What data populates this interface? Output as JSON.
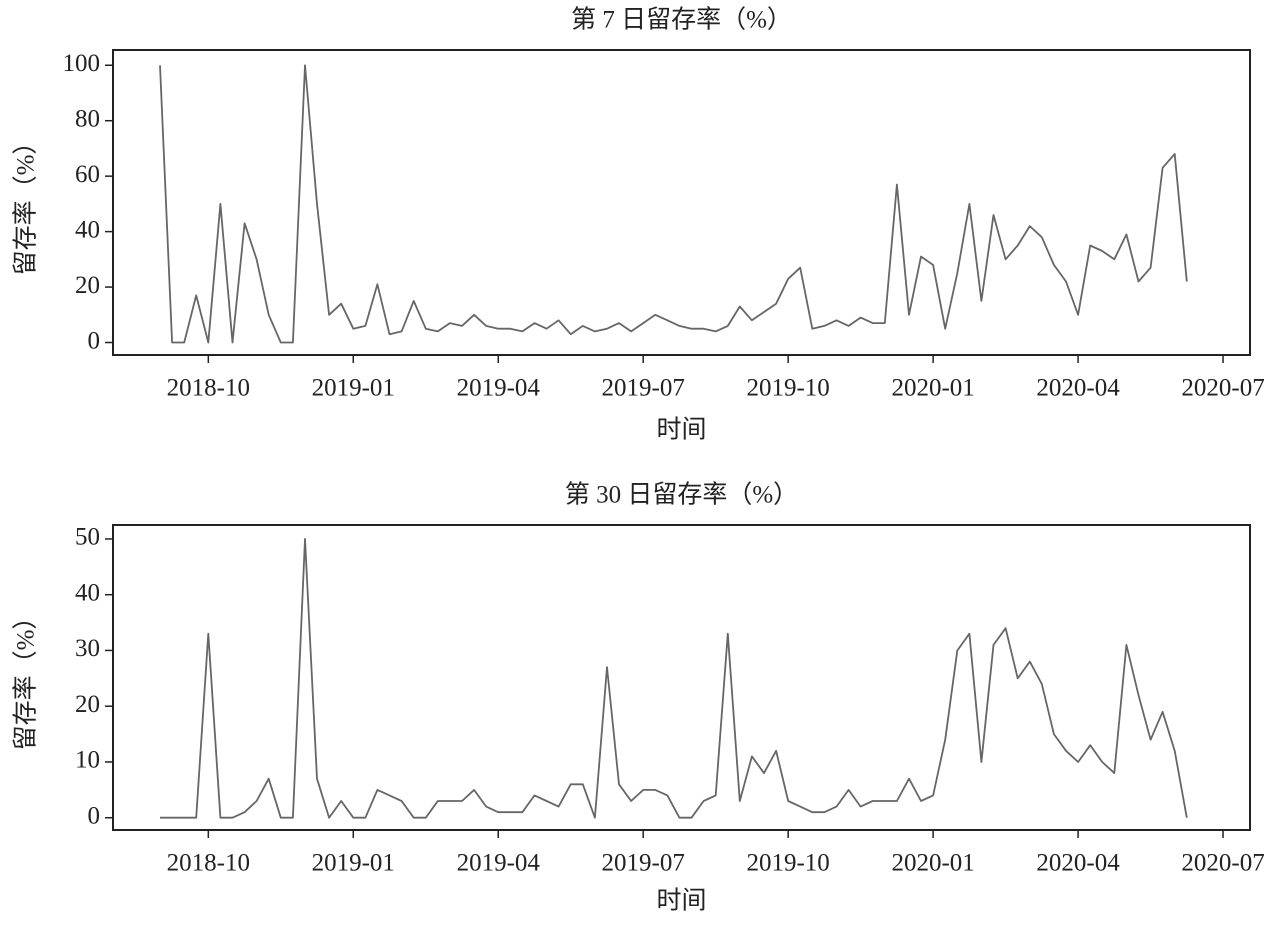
{
  "chart_data": [
    {
      "type": "line",
      "title": "第 7 日留存率（%）",
      "ylabel": "留存率（%）",
      "xlabel": "时间",
      "color": "#666666",
      "categories": [
        null,
        null,
        null,
        null,
        "2018-10",
        null,
        null,
        null,
        null,
        null,
        null,
        null,
        null,
        null,
        null,
        null,
        "2019-01",
        null,
        null,
        null,
        null,
        null,
        null,
        null,
        null,
        null,
        null,
        null,
        "2019-04",
        null,
        null,
        null,
        null,
        null,
        null,
        null,
        null,
        null,
        null,
        null,
        "2019-07",
        null,
        null,
        null,
        null,
        null,
        null,
        null,
        null,
        null,
        null,
        null,
        "2019-10",
        null,
        null,
        null,
        null,
        null,
        null,
        null,
        null,
        null,
        null,
        null,
        "2020-01",
        null,
        null,
        null,
        null,
        null,
        null,
        null,
        null,
        null,
        null,
        null,
        "2020-04",
        null,
        null,
        null,
        null,
        null,
        null,
        null,
        null,
        null,
        null,
        null,
        "2020-07"
      ],
      "values": [
        100,
        0,
        0,
        17,
        0,
        50,
        0,
        43,
        30,
        10,
        0,
        0,
        100,
        50,
        10,
        14,
        5,
        6,
        21,
        3,
        4,
        15,
        5,
        4,
        7,
        6,
        10,
        6,
        5,
        5,
        4,
        7,
        5,
        8,
        3,
        6,
        4,
        5,
        7,
        4,
        7,
        10,
        8,
        6,
        5,
        5,
        4,
        6,
        13,
        8,
        11,
        14,
        23,
        27,
        5,
        6,
        8,
        6,
        9,
        7,
        7,
        57,
        10,
        31,
        28,
        5,
        25,
        50,
        15,
        46,
        30,
        35,
        42,
        38,
        28,
        22,
        10,
        35,
        33,
        30,
        39,
        22,
        27,
        63,
        68,
        22,
        null,
        null,
        null
      ],
      "ylim": [
        -4.5,
        105.5
      ],
      "yticks": [
        0,
        20,
        40,
        60,
        80,
        100
      ]
    },
    {
      "type": "line",
      "title": "第 30 日留存率（%）",
      "ylabel": "留存率（%）",
      "xlabel": "时间",
      "color": "#666666",
      "categories": [
        null,
        null,
        null,
        null,
        "2018-10",
        null,
        null,
        null,
        null,
        null,
        null,
        null,
        null,
        null,
        null,
        null,
        "2019-01",
        null,
        null,
        null,
        null,
        null,
        null,
        null,
        null,
        null,
        null,
        null,
        "2019-04",
        null,
        null,
        null,
        null,
        null,
        null,
        null,
        null,
        null,
        null,
        null,
        "2019-07",
        null,
        null,
        null,
        null,
        null,
        null,
        null,
        null,
        null,
        null,
        null,
        "2019-10",
        null,
        null,
        null,
        null,
        null,
        null,
        null,
        null,
        null,
        null,
        null,
        "2020-01",
        null,
        null,
        null,
        null,
        null,
        null,
        null,
        null,
        null,
        null,
        null,
        "2020-04",
        null,
        null,
        null,
        null,
        null,
        null,
        null,
        null,
        null,
        null,
        null,
        "2020-07"
      ],
      "values": [
        0,
        0,
        0,
        0,
        33,
        0,
        0,
        1,
        3,
        7,
        0,
        0,
        50,
        7,
        0,
        3,
        0,
        0,
        5,
        4,
        3,
        0,
        0,
        3,
        3,
        3,
        5,
        2,
        1,
        1,
        1,
        4,
        3,
        2,
        6,
        6,
        0,
        27,
        6,
        3,
        5,
        5,
        4,
        0,
        0,
        3,
        4,
        33,
        3,
        11,
        8,
        12,
        3,
        2,
        1,
        1,
        2,
        5,
        2,
        3,
        3,
        3,
        7,
        3,
        4,
        14,
        30,
        33,
        10,
        31,
        34,
        25,
        28,
        24,
        15,
        12,
        10,
        13,
        10,
        8,
        31,
        22,
        14,
        19,
        12,
        0,
        null,
        null,
        null
      ],
      "ylim": [
        -2.2,
        52.5
      ],
      "yticks": [
        0,
        10,
        20,
        30,
        40,
        50
      ]
    }
  ]
}
